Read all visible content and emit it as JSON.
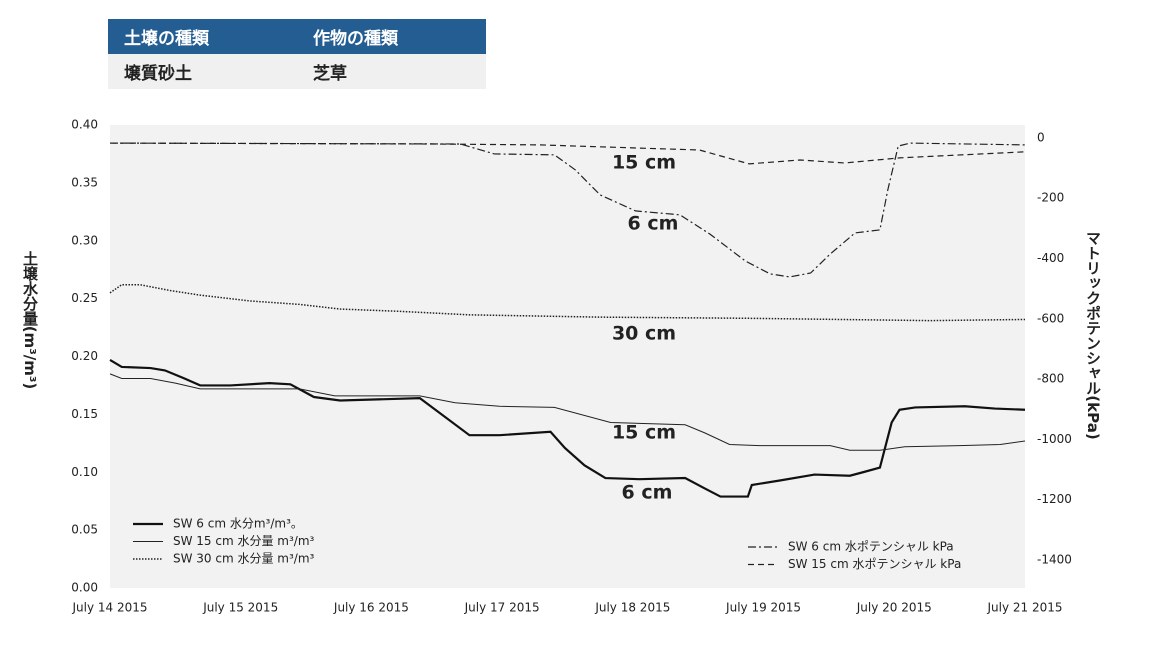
{
  "table": {
    "header": [
      "土壌の種類",
      "作物の種類"
    ],
    "rows": [
      [
        "壌質砂土",
        "芝草"
      ]
    ]
  },
  "chart_data": {
    "type": "line",
    "ylabel": "土壌水分量(m³/m³)",
    "y2label": "マトリックポテンシャル(kPa)",
    "xlim": [
      0,
      7
    ],
    "xticks": [
      {
        "value": 0,
        "label": "July 14 2015"
      },
      {
        "value": 1,
        "label": "July 15 2015"
      },
      {
        "value": 2,
        "label": "July 16 2015"
      },
      {
        "value": 3,
        "label": "July 17 2015"
      },
      {
        "value": 4,
        "label": "July 18 2015"
      },
      {
        "value": 5,
        "label": "July 19 2015"
      },
      {
        "value": 6,
        "label": "July 20 2015"
      },
      {
        "value": 7,
        "label": "July 21 2015"
      }
    ],
    "ylim": [
      0,
      0.4
    ],
    "yticks": [
      {
        "value": 0,
        "label": "0.00"
      },
      {
        "value": 0.05,
        "label": "0.05"
      },
      {
        "value": 0.1,
        "label": "0.10"
      },
      {
        "value": 0.15,
        "label": "0.15"
      },
      {
        "value": 0.2,
        "label": "0.20"
      },
      {
        "value": 0.25,
        "label": "0.25"
      },
      {
        "value": 0.3,
        "label": "0.30"
      },
      {
        "value": 0.35,
        "label": "0.35"
      },
      {
        "value": 0.4,
        "label": "0.40"
      }
    ],
    "y2lim": [
      -1493,
      43
    ],
    "y2ticks": [
      0,
      -200,
      -400,
      -600,
      -800,
      -1000,
      -1200,
      -1400
    ],
    "legend": "lower left",
    "legend2": "lower right",
    "series": [
      {
        "name": "SW 6 cm 水分m³/m³。",
        "color": "#111111",
        "style": "solid",
        "width": 2.2,
        "x": [
          0,
          0.09,
          0.31,
          0.42,
          0.57,
          0.69,
          0.92,
          1.22,
          1.38,
          1.56,
          1.76,
          2.37,
          2.75,
          2.98,
          3.37,
          3.48,
          3.63,
          3.79,
          4.05,
          4.4,
          4.55,
          4.67,
          4.88,
          4.91,
          5.13,
          5.39,
          5.66,
          5.76,
          5.89,
          5.98,
          6.04,
          6.16,
          6.54,
          6.77,
          7.0
        ],
        "values": [
          0.197,
          0.191,
          0.19,
          0.188,
          0.181,
          0.175,
          0.175,
          0.177,
          0.176,
          0.165,
          0.162,
          0.164,
          0.132,
          0.132,
          0.135,
          0.121,
          0.106,
          0.095,
          0.094,
          0.095,
          0.086,
          0.079,
          0.079,
          0.089,
          0.093,
          0.098,
          0.097,
          0.1,
          0.104,
          0.143,
          0.154,
          0.156,
          0.157,
          0.155,
          0.154
        ]
      },
      {
        "name": "SW 15 cm 水分量 m³/m³",
        "color": "#222222",
        "style": "solid",
        "width": 1,
        "x": [
          0,
          0.09,
          0.31,
          0.5,
          0.69,
          1.45,
          1.72,
          2.37,
          2.64,
          2.98,
          3.4,
          3.83,
          4.4,
          4.55,
          4.74,
          4.97,
          5.51,
          5.66,
          5.89,
          6.08,
          6.5,
          6.81,
          7.0
        ],
        "values": [
          0.185,
          0.181,
          0.181,
          0.177,
          0.172,
          0.172,
          0.166,
          0.166,
          0.16,
          0.157,
          0.156,
          0.143,
          0.141,
          0.134,
          0.124,
          0.123,
          0.123,
          0.119,
          0.119,
          0.122,
          0.123,
          0.124,
          0.127
        ]
      },
      {
        "name": "SW 30 cm 水分量 m³/m³",
        "color": "#222222",
        "style": "dotted",
        "width": 1.5,
        "x": [
          0,
          0.09,
          0.23,
          0.46,
          0.69,
          1.07,
          1.45,
          1.76,
          2.22,
          2.75,
          3.75,
          4.89,
          6.27,
          7.0
        ],
        "values": [
          0.255,
          0.262,
          0.262,
          0.257,
          0.253,
          0.248,
          0.245,
          0.241,
          0.239,
          0.236,
          0.234,
          0.233,
          0.231,
          0.232
        ]
      },
      {
        "name": "SW 6 cm 水ポテンシャル kPa",
        "color": "#222222",
        "style": "dashdot",
        "width": 1.2,
        "axis": "y2",
        "x": [
          0,
          2.68,
          2.94,
          3.4,
          3.56,
          3.75,
          4.02,
          4.36,
          4.59,
          4.86,
          5.05,
          5.2,
          5.36,
          5.51,
          5.7,
          5.89,
          5.95,
          6.03,
          6.12,
          7.0
        ],
        "values": [
          -17,
          -20,
          -53,
          -56,
          -106,
          -189,
          -242,
          -255,
          -319,
          -408,
          -451,
          -461,
          -448,
          -385,
          -315,
          -305,
          -173,
          -27,
          -17,
          -23
        ]
      },
      {
        "name": "SW 15 cm 水ポテンシャル kPa",
        "color": "#222222",
        "style": "dashed",
        "width": 1.2,
        "axis": "y2",
        "x": [
          0,
          2.45,
          3.29,
          4.51,
          4.89,
          5.28,
          5.62,
          6.04,
          7.0
        ],
        "values": [
          -17,
          -20,
          -23,
          -40,
          -86,
          -73,
          -83,
          -66,
          -46
        ]
      }
    ],
    "annotations": [
      "15 cm",
      "6 cm",
      "30 cm",
      "15 cm",
      "6 cm"
    ]
  }
}
